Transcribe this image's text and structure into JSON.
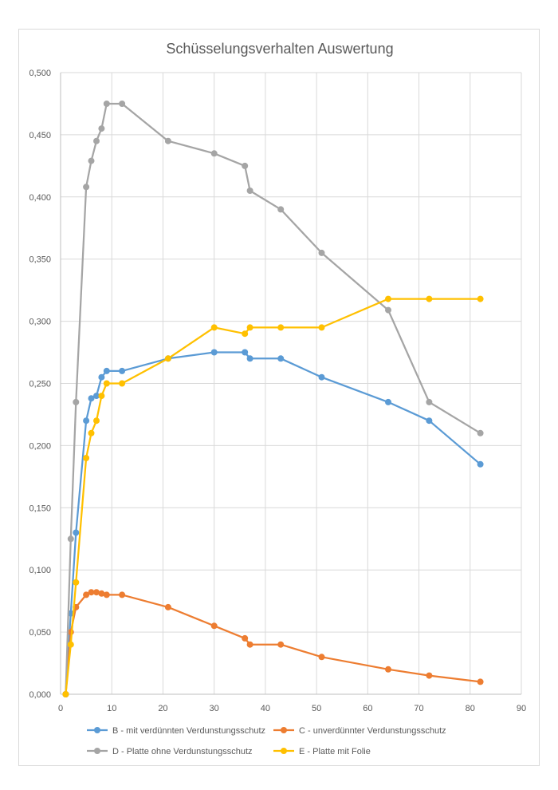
{
  "chart_data": {
    "type": "line",
    "title": "Schüsselungsverhalten Auswertung",
    "xlabel": "",
    "ylabel": "",
    "xlim": [
      0,
      90
    ],
    "ylim": [
      0,
      0.5
    ],
    "x_ticks": [
      "0",
      "10",
      "20",
      "30",
      "40",
      "50",
      "60",
      "70",
      "80",
      "90"
    ],
    "y_ticks": [
      "0,000",
      "0,050",
      "0,100",
      "0,150",
      "0,200",
      "0,250",
      "0,300",
      "0,350",
      "0,400",
      "0,450",
      "0,500"
    ],
    "grid": true,
    "legend_position": "bottom",
    "series": [
      {
        "name": "B - mit verdünnten Verdunstungsschutz",
        "color": "#5b9bd5",
        "x": [
          1,
          2,
          3,
          5,
          6,
          7,
          8,
          9,
          12,
          21,
          30,
          36,
          37,
          43,
          51,
          64,
          72,
          82
        ],
        "y": [
          0.0,
          0.065,
          0.13,
          0.22,
          0.238,
          0.24,
          0.255,
          0.26,
          0.26,
          0.27,
          0.275,
          0.275,
          0.27,
          0.27,
          0.255,
          0.235,
          0.22,
          0.185
        ]
      },
      {
        "name": "C -  unverdünnter Verdunstungsschutz",
        "color": "#ed7d31",
        "x": [
          1,
          2,
          3,
          5,
          6,
          7,
          8,
          9,
          12,
          21,
          30,
          36,
          37,
          43,
          51,
          64,
          72,
          82
        ],
        "y": [
          0.0,
          0.05,
          0.07,
          0.08,
          0.082,
          0.082,
          0.081,
          0.08,
          0.08,
          0.07,
          0.055,
          0.045,
          0.04,
          0.04,
          0.03,
          0.02,
          0.015,
          0.01
        ]
      },
      {
        "name": "D - Platte ohne Verdunstungsschutz",
        "color": "#a5a5a5",
        "x": [
          1,
          2,
          3,
          5,
          6,
          7,
          8,
          9,
          12,
          21,
          30,
          36,
          37,
          43,
          51,
          64,
          72,
          82
        ],
        "y": [
          0.0,
          0.125,
          0.235,
          0.408,
          0.429,
          0.445,
          0.455,
          0.475,
          0.475,
          0.445,
          0.435,
          0.425,
          0.405,
          0.39,
          0.355,
          0.309,
          0.235,
          0.21
        ]
      },
      {
        "name": "E - Platte mit Folie",
        "color": "#ffc000",
        "x": [
          1,
          2,
          3,
          5,
          6,
          7,
          8,
          9,
          12,
          21,
          30,
          36,
          37,
          43,
          51,
          64,
          72,
          82
        ],
        "y": [
          0.0,
          0.04,
          0.09,
          0.19,
          0.21,
          0.22,
          0.24,
          0.25,
          0.25,
          0.27,
          0.295,
          0.29,
          0.295,
          0.295,
          0.295,
          0.318,
          0.318,
          0.318
        ]
      }
    ]
  }
}
